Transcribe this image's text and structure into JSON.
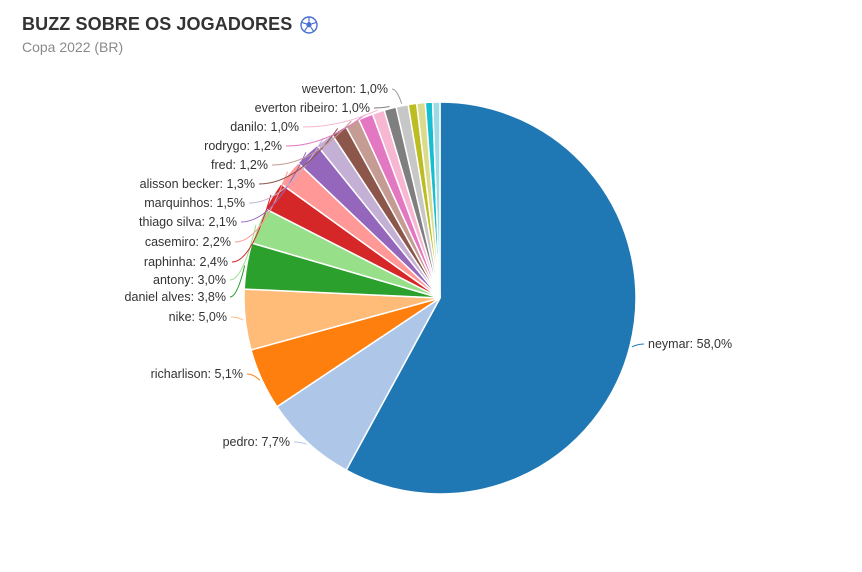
{
  "header": {
    "title": "BUZZ SOBRE OS JOGADORES",
    "subtitle": "Copa 2022 (BR)",
    "title_icon": "soccer-ball-icon"
  },
  "chart_data": {
    "type": "pie",
    "title": "BUZZ SOBRE OS JOGADORES",
    "subtitle": "Copa 2022 (BR)",
    "slices": [
      {
        "label": "neymar",
        "value": 58.0,
        "text": "neymar: 58,0%",
        "color": "#1f77b4"
      },
      {
        "label": "pedro",
        "value": 7.7,
        "text": "pedro: 7,7%",
        "color": "#aec7e8"
      },
      {
        "label": "richarlison",
        "value": 5.1,
        "text": "richarlison: 5,1%",
        "color": "#ff7f0e"
      },
      {
        "label": "nike",
        "value": 5.0,
        "text": "nike: 5,0%",
        "color": "#ffbb78"
      },
      {
        "label": "daniel alves",
        "value": 3.8,
        "text": "daniel alves: 3,8%",
        "color": "#2ca02c"
      },
      {
        "label": "antony",
        "value": 3.0,
        "text": "antony: 3,0%",
        "color": "#98df8a"
      },
      {
        "label": "raphinha",
        "value": 2.4,
        "text": "raphinha: 2,4%",
        "color": "#d62728"
      },
      {
        "label": "casemiro",
        "value": 2.2,
        "text": "casemiro: 2,2%",
        "color": "#ff9896"
      },
      {
        "label": "thiago silva",
        "value": 2.1,
        "text": "thiago silva: 2,1%",
        "color": "#9467bd"
      },
      {
        "label": "marquinhos",
        "value": 1.5,
        "text": "marquinhos: 1,5%",
        "color": "#c5b0d5"
      },
      {
        "label": "alisson becker",
        "value": 1.3,
        "text": "alisson becker: 1,3%",
        "color": "#8c564b"
      },
      {
        "label": "fred",
        "value": 1.2,
        "text": "fred: 1,2%",
        "color": "#c49c94"
      },
      {
        "label": "rodrygo",
        "value": 1.2,
        "text": "rodrygo: 1,2%",
        "color": "#e377c2"
      },
      {
        "label": "danilo",
        "value": 1.0,
        "text": "danilo: 1,0%",
        "color": "#f7b6d2"
      },
      {
        "label": "everton ribeiro",
        "value": 1.0,
        "text": "everton ribeiro: 1,0%",
        "color": "#7f7f7f"
      },
      {
        "label": "weverton",
        "value": 1.0,
        "text": "weverton: 1,0%",
        "color": "#c7c7c7"
      },
      {
        "label": "",
        "value": 0.7,
        "text": "",
        "color": "#bcbd22"
      },
      {
        "label": "",
        "value": 0.7,
        "text": "",
        "color": "#dbdb8d"
      },
      {
        "label": "",
        "value": 0.6,
        "text": "",
        "color": "#17becf"
      },
      {
        "label": "",
        "value": 0.6,
        "text": "",
        "color": "#9edae5"
      }
    ]
  }
}
